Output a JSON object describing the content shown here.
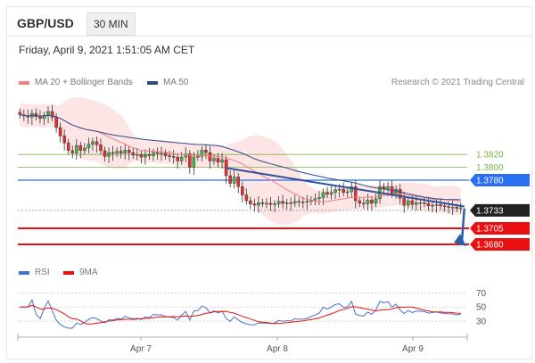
{
  "header": {
    "symbol": "GBP/USD",
    "timeframe": "30 MIN",
    "datetime": "Friday, April 9, 2021 1:51:05 AM CET"
  },
  "legend": {
    "ma20_label": "MA 20 + Bollinger Bands",
    "ma50_label": "MA 50",
    "credit": "Research © 2021 Trading Central",
    "rsi_label": "RSI",
    "ma9_label": "9MA"
  },
  "colors": {
    "ma20": "#f08080",
    "ma50": "#2c4a8c",
    "bands_fill": "#fde0e0",
    "resistance": "#7ab648",
    "pivot": "#2a6ff0",
    "support": "#e81010",
    "current": "#222222",
    "trendline": "#2f4f9a",
    "rsi": "#4472c4",
    "ma9": "#e81010",
    "candle_up": "#4caf50",
    "candle_down": "#e03030"
  },
  "chart_data": {
    "type": "candlestick",
    "x_ticks": [
      "Apr 7",
      "Apr 8",
      "Apr 9"
    ],
    "y_range": [
      1.3655,
      1.3905
    ],
    "levels": [
      {
        "value": 1.382,
        "label": "1.3820",
        "kind": "resistance"
      },
      {
        "value": 1.38,
        "label": "1.3800",
        "kind": "resistance"
      },
      {
        "value": 1.378,
        "label": "1.3780",
        "kind": "pivot"
      },
      {
        "value": 1.3733,
        "label": "1.3733",
        "kind": "current"
      },
      {
        "value": 1.3705,
        "label": "1.3705",
        "kind": "support"
      },
      {
        "value": 1.368,
        "label": "1.3680",
        "kind": "support"
      }
    ],
    "close_series": [
      1.3882,
      1.388,
      1.3878,
      1.3884,
      1.3879,
      1.3876,
      1.3881,
      1.3887,
      1.3878,
      1.3862,
      1.3849,
      1.3838,
      1.3826,
      1.3822,
      1.3834,
      1.3826,
      1.383,
      1.3836,
      1.384,
      1.3835,
      1.3826,
      1.3817,
      1.3823,
      1.3822,
      1.3825,
      1.3822,
      1.3827,
      1.3823,
      1.3819,
      1.382,
      1.3816,
      1.382,
      1.3818,
      1.3823,
      1.3822,
      1.3822,
      1.3818,
      1.3817,
      1.3816,
      1.381,
      1.3816,
      1.3821,
      1.38,
      1.3816,
      1.3817,
      1.3827,
      1.3823,
      1.381,
      1.3814,
      1.3808,
      1.3812,
      1.3787,
      1.3775,
      1.3785,
      1.377,
      1.3757,
      1.3748,
      1.3743,
      1.3741,
      1.3745,
      1.3744,
      1.3744,
      1.3742,
      1.3743,
      1.3747,
      1.3744,
      1.3745,
      1.3744,
      1.3747,
      1.3746,
      1.3746,
      1.3747,
      1.3749,
      1.3751,
      1.3753,
      1.3761,
      1.3758,
      1.3761,
      1.3765,
      1.3766,
      1.3761,
      1.3762,
      1.377,
      1.3748,
      1.3744,
      1.3743,
      1.3749,
      1.3744,
      1.3751,
      1.377,
      1.3767,
      1.377,
      1.3759,
      1.3766,
      1.3752,
      1.3741,
      1.3748,
      1.3742,
      1.3745,
      1.3745,
      1.3744,
      1.374,
      1.3741,
      1.3742,
      1.374,
      1.3739,
      1.3738,
      1.3738,
      1.3736,
      1.3737
    ],
    "rsi": {
      "y_ticks": [
        70,
        50,
        30
      ],
      "y_range": [
        15,
        78
      ]
    }
  }
}
